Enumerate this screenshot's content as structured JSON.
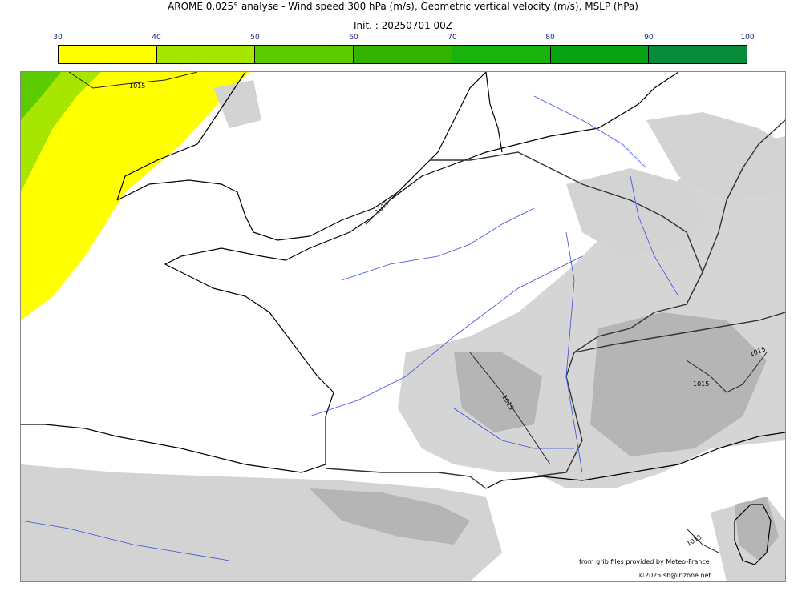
{
  "header": {
    "title": "AROME 0.025° analyse - Wind speed 300 hPa (m/s), Geometric vertical velocity (m/s), MSLP (hPa)",
    "init": "Init. : 20250701 00Z"
  },
  "colorbar": {
    "ticks": [
      "30",
      "40",
      "50",
      "60",
      "70",
      "80",
      "90",
      "100"
    ],
    "colors": [
      "#ffff00",
      "#a6e600",
      "#5ccc00",
      "#33b300",
      "#1ab30d",
      "#07a313",
      "#078a3a",
      "#067350"
    ]
  },
  "map": {
    "wind_colors": {
      "30-40": "#ffff00",
      "40-50": "#a6e600",
      "50-60": "#5ccc00"
    },
    "vertical_velocity_color": "#d3d3d3",
    "isobar_labels": [
      "1015",
      "1015",
      "1015",
      "1015",
      "1015",
      "1015"
    ]
  },
  "credits": {
    "line1": "from grib files provided by Meteo-France",
    "line2": "©2025 sb@irizone.net"
  }
}
